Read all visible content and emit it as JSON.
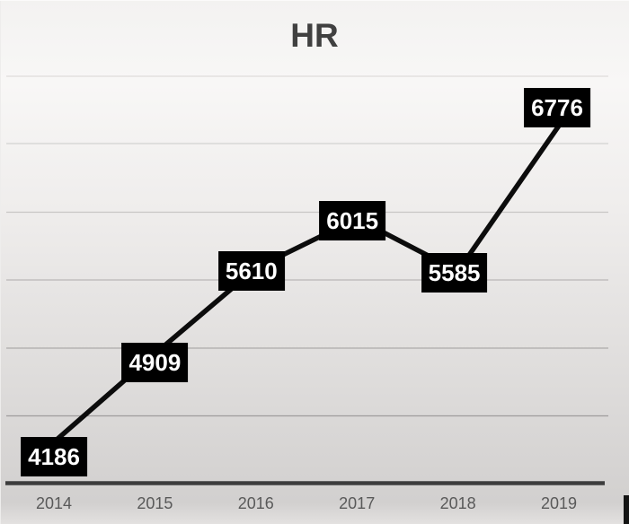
{
  "chart_data": {
    "type": "line",
    "title": "HR",
    "categories": [
      "2014",
      "2015",
      "2016",
      "2017",
      "2018",
      "2019"
    ],
    "values": [
      4186,
      4909,
      5610,
      6015,
      5585,
      6776
    ],
    "xlabel": "",
    "ylabel": "",
    "ylim": [
      3850,
      7180
    ],
    "gridlines": "horizontal",
    "legend": "none",
    "colors": {
      "line": "#0c0c0c",
      "data_label_background": "#000000",
      "data_label_text": "#ffffff",
      "title_text": "#404040",
      "axis_tick_text": "#595959",
      "axis_line": "#3d3d3d",
      "gridline": "#6e6c6b"
    }
  }
}
